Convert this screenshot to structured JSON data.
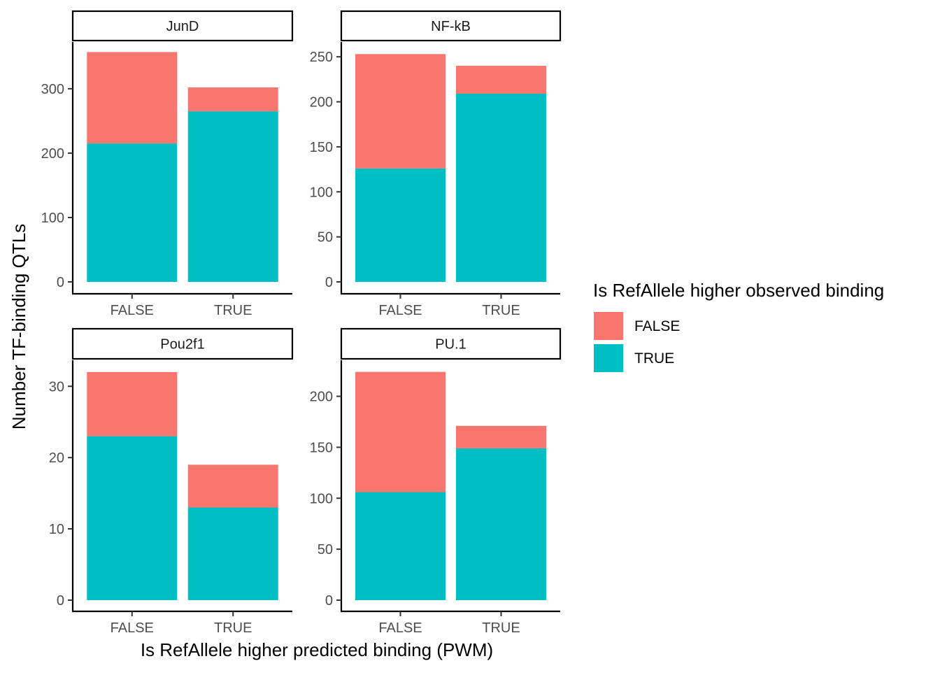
{
  "chart_data": {
    "type": "bar",
    "stacked": true,
    "facet_layout": "2x2",
    "free_y_scales": true,
    "xlabel": "Is RefAllele higher predicted binding (PWM)",
    "ylabel": "Number TF-binding QTLs",
    "categories": [
      "FALSE",
      "TRUE"
    ],
    "legend": {
      "title": "Is RefAllele higher observed binding",
      "placement": "right",
      "entries": [
        {
          "label": "FALSE",
          "color": "#F8766D"
        },
        {
          "label": "TRUE",
          "color": "#00BFC4"
        }
      ]
    },
    "grid": false,
    "panels": [
      {
        "title": "JunD",
        "ylim": [
          0,
          372
        ],
        "yticks": [
          "0",
          "100",
          "200",
          "300"
        ],
        "ytick_values": [
          0,
          100,
          200,
          300
        ],
        "series": [
          {
            "name": "TRUE",
            "values": [
              215,
              265
            ]
          },
          {
            "name": "FALSE",
            "values": [
              142,
              37
            ]
          }
        ]
      },
      {
        "title": "NF-kB",
        "ylim": [
          0,
          266
        ],
        "yticks": [
          "0",
          "50",
          "100",
          "150",
          "200",
          "250"
        ],
        "ytick_values": [
          0,
          50,
          100,
          150,
          200,
          250
        ],
        "series": [
          {
            "name": "TRUE",
            "values": [
              126,
              209
            ]
          },
          {
            "name": "FALSE",
            "values": [
              127,
              31
            ]
          }
        ]
      },
      {
        "title": "Pou2f1",
        "ylim": [
          0,
          33.6
        ],
        "yticks": [
          "0",
          "10",
          "20",
          "30"
        ],
        "ytick_values": [
          0,
          10,
          20,
          30
        ],
        "series": [
          {
            "name": "TRUE",
            "values": [
              23,
              13
            ]
          },
          {
            "name": "FALSE",
            "values": [
              9,
              6
            ]
          }
        ]
      },
      {
        "title": "PU.1",
        "ylim": [
          0,
          235
        ],
        "yticks": [
          "0",
          "50",
          "100",
          "150",
          "200"
        ],
        "ytick_values": [
          0,
          50,
          100,
          150,
          200
        ],
        "series": [
          {
            "name": "TRUE",
            "values": [
              106,
              149
            ]
          },
          {
            "name": "FALSE",
            "values": [
              118,
              22
            ]
          }
        ]
      }
    ]
  }
}
